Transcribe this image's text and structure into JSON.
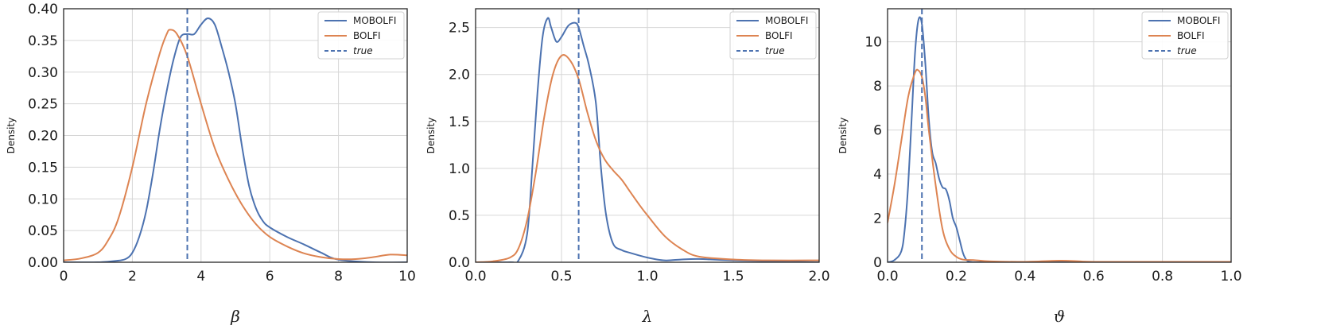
{
  "colors": {
    "mobolfi": "#4c72b0",
    "bolfi": "#dd8452",
    "true": "#4c72b0"
  },
  "legend": [
    "MOBOLFI",
    "BOLFI",
    "true"
  ],
  "chart_data": [
    {
      "type": "line",
      "xlabel": "β",
      "ylabel": "Density",
      "xlim": [
        0,
        10
      ],
      "ylim": [
        0,
        0.4
      ],
      "xticks": [
        0,
        2,
        4,
        6,
        8,
        10
      ],
      "yticks": [
        0.0,
        0.05,
        0.1,
        0.15,
        0.2,
        0.25,
        0.3,
        0.35,
        0.4
      ],
      "xtick_labels": [
        "0",
        "2",
        "4",
        "6",
        "8",
        "10"
      ],
      "ytick_labels": [
        "0.00",
        "0.05",
        "0.10",
        "0.15",
        "0.20",
        "0.25",
        "0.30",
        "0.35",
        "0.40"
      ],
      "grid": true,
      "legend_position": "top-right",
      "true_value": 3.6,
      "series": [
        {
          "name": "MOBOLFI",
          "x": [
            0,
            1,
            1.5,
            1.8,
            2.0,
            2.2,
            2.4,
            2.6,
            2.8,
            3.0,
            3.2,
            3.4,
            3.6,
            3.8,
            4.0,
            4.2,
            4.4,
            4.6,
            4.8,
            5.0,
            5.2,
            5.4,
            5.6,
            5.8,
            6.0,
            6.5,
            7.0,
            7.5,
            8.0,
            9.0,
            10.0
          ],
          "y": [
            0,
            0,
            0.002,
            0.005,
            0.015,
            0.04,
            0.08,
            0.14,
            0.21,
            0.27,
            0.32,
            0.355,
            0.36,
            0.36,
            0.375,
            0.385,
            0.375,
            0.34,
            0.3,
            0.25,
            0.18,
            0.12,
            0.085,
            0.065,
            0.055,
            0.04,
            0.028,
            0.015,
            0.004,
            0.0,
            0.0
          ]
        },
        {
          "name": "BOLFI",
          "x": [
            0,
            0.5,
            1.0,
            1.3,
            1.6,
            2.0,
            2.4,
            2.8,
            3.0,
            3.1,
            3.3,
            3.6,
            4.0,
            4.4,
            4.8,
            5.2,
            5.6,
            6.0,
            6.5,
            7.0,
            7.5,
            8.0,
            8.5,
            9.0,
            9.5,
            10.0
          ],
          "y": [
            0.003,
            0.006,
            0.015,
            0.035,
            0.07,
            0.15,
            0.25,
            0.33,
            0.36,
            0.367,
            0.36,
            0.325,
            0.25,
            0.18,
            0.13,
            0.09,
            0.06,
            0.04,
            0.025,
            0.014,
            0.008,
            0.005,
            0.005,
            0.008,
            0.012,
            0.011
          ]
        }
      ]
    },
    {
      "type": "line",
      "xlabel": "λ",
      "ylabel": "Density",
      "xlim": [
        0,
        2.0
      ],
      "ylim": [
        0,
        2.7
      ],
      "xticks": [
        0,
        0.5,
        1.0,
        1.5,
        2.0
      ],
      "yticks": [
        0.0,
        0.5,
        1.0,
        1.5,
        2.0,
        2.5
      ],
      "xtick_labels": [
        "0.0",
        "0.5",
        "1.0",
        "1.5",
        "2.0"
      ],
      "ytick_labels": [
        "0.0",
        "0.5",
        "1.0",
        "1.5",
        "2.0",
        "2.5"
      ],
      "grid": true,
      "legend_position": "top-right",
      "true_value": 0.6,
      "series": [
        {
          "name": "MOBOLFI",
          "x": [
            0,
            0.2,
            0.25,
            0.3,
            0.33,
            0.36,
            0.39,
            0.42,
            0.44,
            0.47,
            0.5,
            0.54,
            0.58,
            0.6,
            0.63,
            0.66,
            0.7,
            0.73,
            0.76,
            0.8,
            0.85,
            0.9,
            1.0,
            1.1,
            1.2,
            1.3,
            1.5,
            2.0
          ],
          "y": [
            0,
            0,
            0.02,
            0.3,
            1.0,
            1.8,
            2.4,
            2.6,
            2.5,
            2.35,
            2.4,
            2.52,
            2.55,
            2.5,
            2.3,
            2.1,
            1.7,
            1.0,
            0.5,
            0.2,
            0.13,
            0.1,
            0.05,
            0.02,
            0.03,
            0.035,
            0.02,
            0.0
          ]
        },
        {
          "name": "BOLFI",
          "x": [
            0,
            0.1,
            0.2,
            0.25,
            0.3,
            0.35,
            0.4,
            0.45,
            0.5,
            0.55,
            0.6,
            0.65,
            0.7,
            0.75,
            0.8,
            0.85,
            0.9,
            0.95,
            1.0,
            1.1,
            1.2,
            1.3,
            1.5,
            1.7,
            2.0
          ],
          "y": [
            0.0,
            0.01,
            0.05,
            0.15,
            0.45,
            0.95,
            1.55,
            2.0,
            2.2,
            2.15,
            1.95,
            1.6,
            1.3,
            1.1,
            0.98,
            0.88,
            0.75,
            0.62,
            0.5,
            0.28,
            0.14,
            0.06,
            0.03,
            0.02,
            0.02
          ]
        }
      ]
    },
    {
      "type": "line",
      "xlabel": "ϑ",
      "ylabel": "Density",
      "xlim": [
        0,
        1.0
      ],
      "ylim": [
        0,
        11.5
      ],
      "xticks": [
        0.0,
        0.2,
        0.4,
        0.6,
        0.8,
        1.0
      ],
      "yticks": [
        0,
        2,
        4,
        6,
        8,
        10
      ],
      "xtick_labels": [
        "0.0",
        "0.2",
        "0.4",
        "0.6",
        "0.8",
        "1.0"
      ],
      "ytick_labels": [
        "0",
        "2",
        "4",
        "6",
        "8",
        "10"
      ],
      "grid": true,
      "legend_position": "top-right",
      "true_value": 0.1,
      "series": [
        {
          "name": "MOBOLFI",
          "x": [
            0,
            0.02,
            0.04,
            0.05,
            0.06,
            0.07,
            0.08,
            0.09,
            0.1,
            0.11,
            0.12,
            0.13,
            0.14,
            0.15,
            0.16,
            0.17,
            0.18,
            0.19,
            0.2,
            0.21,
            0.22,
            0.23,
            0.24,
            0.26,
            0.3,
            0.5,
            0.8,
            1.0
          ],
          "y": [
            0.0,
            0.1,
            0.5,
            1.5,
            3.5,
            6.5,
            9.5,
            11.0,
            10.8,
            9.0,
            6.5,
            5.0,
            4.5,
            3.8,
            3.4,
            3.3,
            2.8,
            2.0,
            1.6,
            1.0,
            0.4,
            0.1,
            0.02,
            0.0,
            0.0,
            0.0,
            0.0,
            0.0
          ]
        },
        {
          "name": "BOLFI",
          "x": [
            0.0,
            0.02,
            0.04,
            0.06,
            0.08,
            0.09,
            0.1,
            0.11,
            0.12,
            0.14,
            0.16,
            0.18,
            0.2,
            0.22,
            0.25,
            0.3,
            0.4,
            0.5,
            0.55,
            0.6,
            0.8,
            1.0
          ],
          "y": [
            1.8,
            3.5,
            5.5,
            7.5,
            8.6,
            8.7,
            8.4,
            7.5,
            6.0,
            3.5,
            1.5,
            0.6,
            0.25,
            0.12,
            0.1,
            0.04,
            0.02,
            0.07,
            0.05,
            0.02,
            0.02,
            0.02
          ]
        }
      ]
    }
  ]
}
